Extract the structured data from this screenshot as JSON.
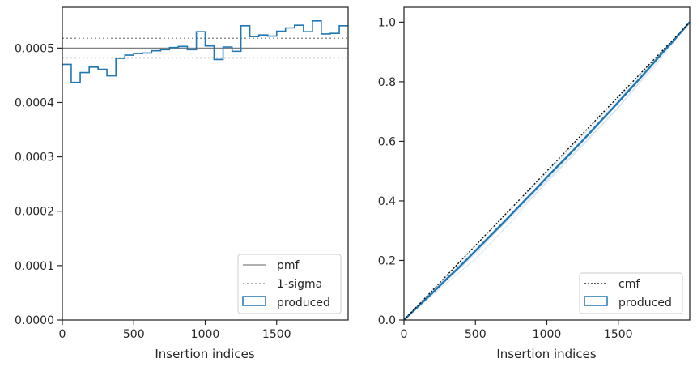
{
  "colors": {
    "produced": "#1f77b4",
    "produced_light": "#bcd3e6",
    "pmf": "#808080",
    "cmf": "#000000",
    "axes": "#262626"
  },
  "chart_data": [
    {
      "type": "step-histogram",
      "xlabel": "Insertion indices",
      "ylabel": "",
      "xlim": [
        0,
        2000
      ],
      "ylim": [
        0,
        0.000575
      ],
      "x_ticks": [
        0,
        500,
        1000,
        1500
      ],
      "x_tick_labels": [
        "0",
        "500",
        "1000",
        "1500"
      ],
      "y_ticks": [
        0,
        0.0001,
        0.0002,
        0.0003,
        0.0004,
        0.0005
      ],
      "y_tick_labels": [
        "0.0000",
        "0.0001",
        "0.0002",
        "0.0003",
        "0.0004",
        "0.0005"
      ],
      "legend_position": "lower-right",
      "pmf": {
        "name": "pmf",
        "value": 0.0005
      },
      "sigma": {
        "name": "1-sigma",
        "upper": 0.000518,
        "lower": 0.000482
      },
      "produced": {
        "name": "produced",
        "bin_edges": [
          0,
          62,
          125,
          188,
          250,
          312,
          375,
          438,
          500,
          562,
          625,
          688,
          750,
          812,
          875,
          938,
          1000,
          1062,
          1125,
          1188,
          1250,
          1312,
          1375,
          1438,
          1500,
          1562,
          1625,
          1688,
          1750,
          1812,
          1875,
          1938,
          2000
        ],
        "values": [
          0.00047,
          0.000437,
          0.000455,
          0.000465,
          0.000461,
          0.000449,
          0.000481,
          0.000487,
          0.00049,
          0.000491,
          0.000495,
          0.000497,
          0.000501,
          0.000503,
          0.000497,
          0.00053,
          0.000504,
          0.000479,
          0.000502,
          0.000494,
          0.000541,
          0.000521,
          0.000524,
          0.000522,
          0.000531,
          0.000537,
          0.000542,
          0.00053,
          0.00055,
          0.000526,
          0.000527,
          0.000541
        ]
      }
    },
    {
      "type": "line",
      "xlabel": "Insertion indices",
      "ylabel": "",
      "xlim": [
        0,
        2000
      ],
      "ylim": [
        0,
        1.05
      ],
      "x_ticks": [
        0,
        500,
        1000,
        1500
      ],
      "x_tick_labels": [
        "0",
        "500",
        "1000",
        "1500"
      ],
      "y_ticks": [
        0,
        0.2,
        0.4,
        0.6,
        0.8,
        1.0
      ],
      "y_tick_labels": [
        "0.0",
        "0.2",
        "0.4",
        "0.6",
        "0.8",
        "1.0"
      ],
      "legend_position": "lower-right",
      "cmf": {
        "name": "cmf",
        "x": [
          0,
          2000
        ],
        "y": [
          0,
          1.0
        ]
      },
      "produced": {
        "name": "produced",
        "x": [
          0,
          62,
          125,
          188,
          250,
          312,
          375,
          438,
          500,
          562,
          625,
          688,
          750,
          812,
          875,
          938,
          1000,
          1062,
          1125,
          1188,
          1250,
          1312,
          1375,
          1438,
          1500,
          1562,
          1625,
          1688,
          1750,
          1812,
          1875,
          1938,
          2000
        ],
        "y": [
          0,
          0.029,
          0.057,
          0.086,
          0.115,
          0.144,
          0.172,
          0.202,
          0.232,
          0.262,
          0.293,
          0.323,
          0.354,
          0.385,
          0.416,
          0.447,
          0.479,
          0.51,
          0.54,
          0.571,
          0.602,
          0.634,
          0.667,
          0.699,
          0.731,
          0.764,
          0.797,
          0.831,
          0.865,
          0.899,
          0.932,
          0.966,
          1.0
        ]
      },
      "samples": [
        {
          "x": [
            0,
            250,
            500,
            750,
            1000,
            1250,
            1500,
            1750,
            2000
          ],
          "y": [
            0,
            0.105,
            0.205,
            0.33,
            0.465,
            0.59,
            0.715,
            0.85,
            1.0
          ]
        },
        {
          "x": [
            0,
            250,
            500,
            750,
            1000,
            1250,
            1500,
            1750,
            2000
          ],
          "y": [
            0,
            0.125,
            0.25,
            0.372,
            0.495,
            0.618,
            0.745,
            0.872,
            1.0
          ]
        },
        {
          "x": [
            0,
            250,
            500,
            750,
            1000,
            1250,
            1500,
            1750,
            2000
          ],
          "y": [
            0,
            0.115,
            0.228,
            0.345,
            0.462,
            0.585,
            0.712,
            0.858,
            1.0
          ]
        },
        {
          "x": [
            0,
            250,
            500,
            750,
            1000,
            1250,
            1500,
            1750,
            2000
          ],
          "y": [
            0,
            0.12,
            0.238,
            0.358,
            0.482,
            0.608,
            0.738,
            0.866,
            1.0
          ]
        },
        {
          "x": [
            0,
            250,
            500,
            750,
            1000,
            1250,
            1500,
            1750,
            2000
          ],
          "y": [
            0,
            0.11,
            0.222,
            0.35,
            0.47,
            0.6,
            0.728,
            0.862,
            1.0
          ]
        }
      ]
    }
  ]
}
